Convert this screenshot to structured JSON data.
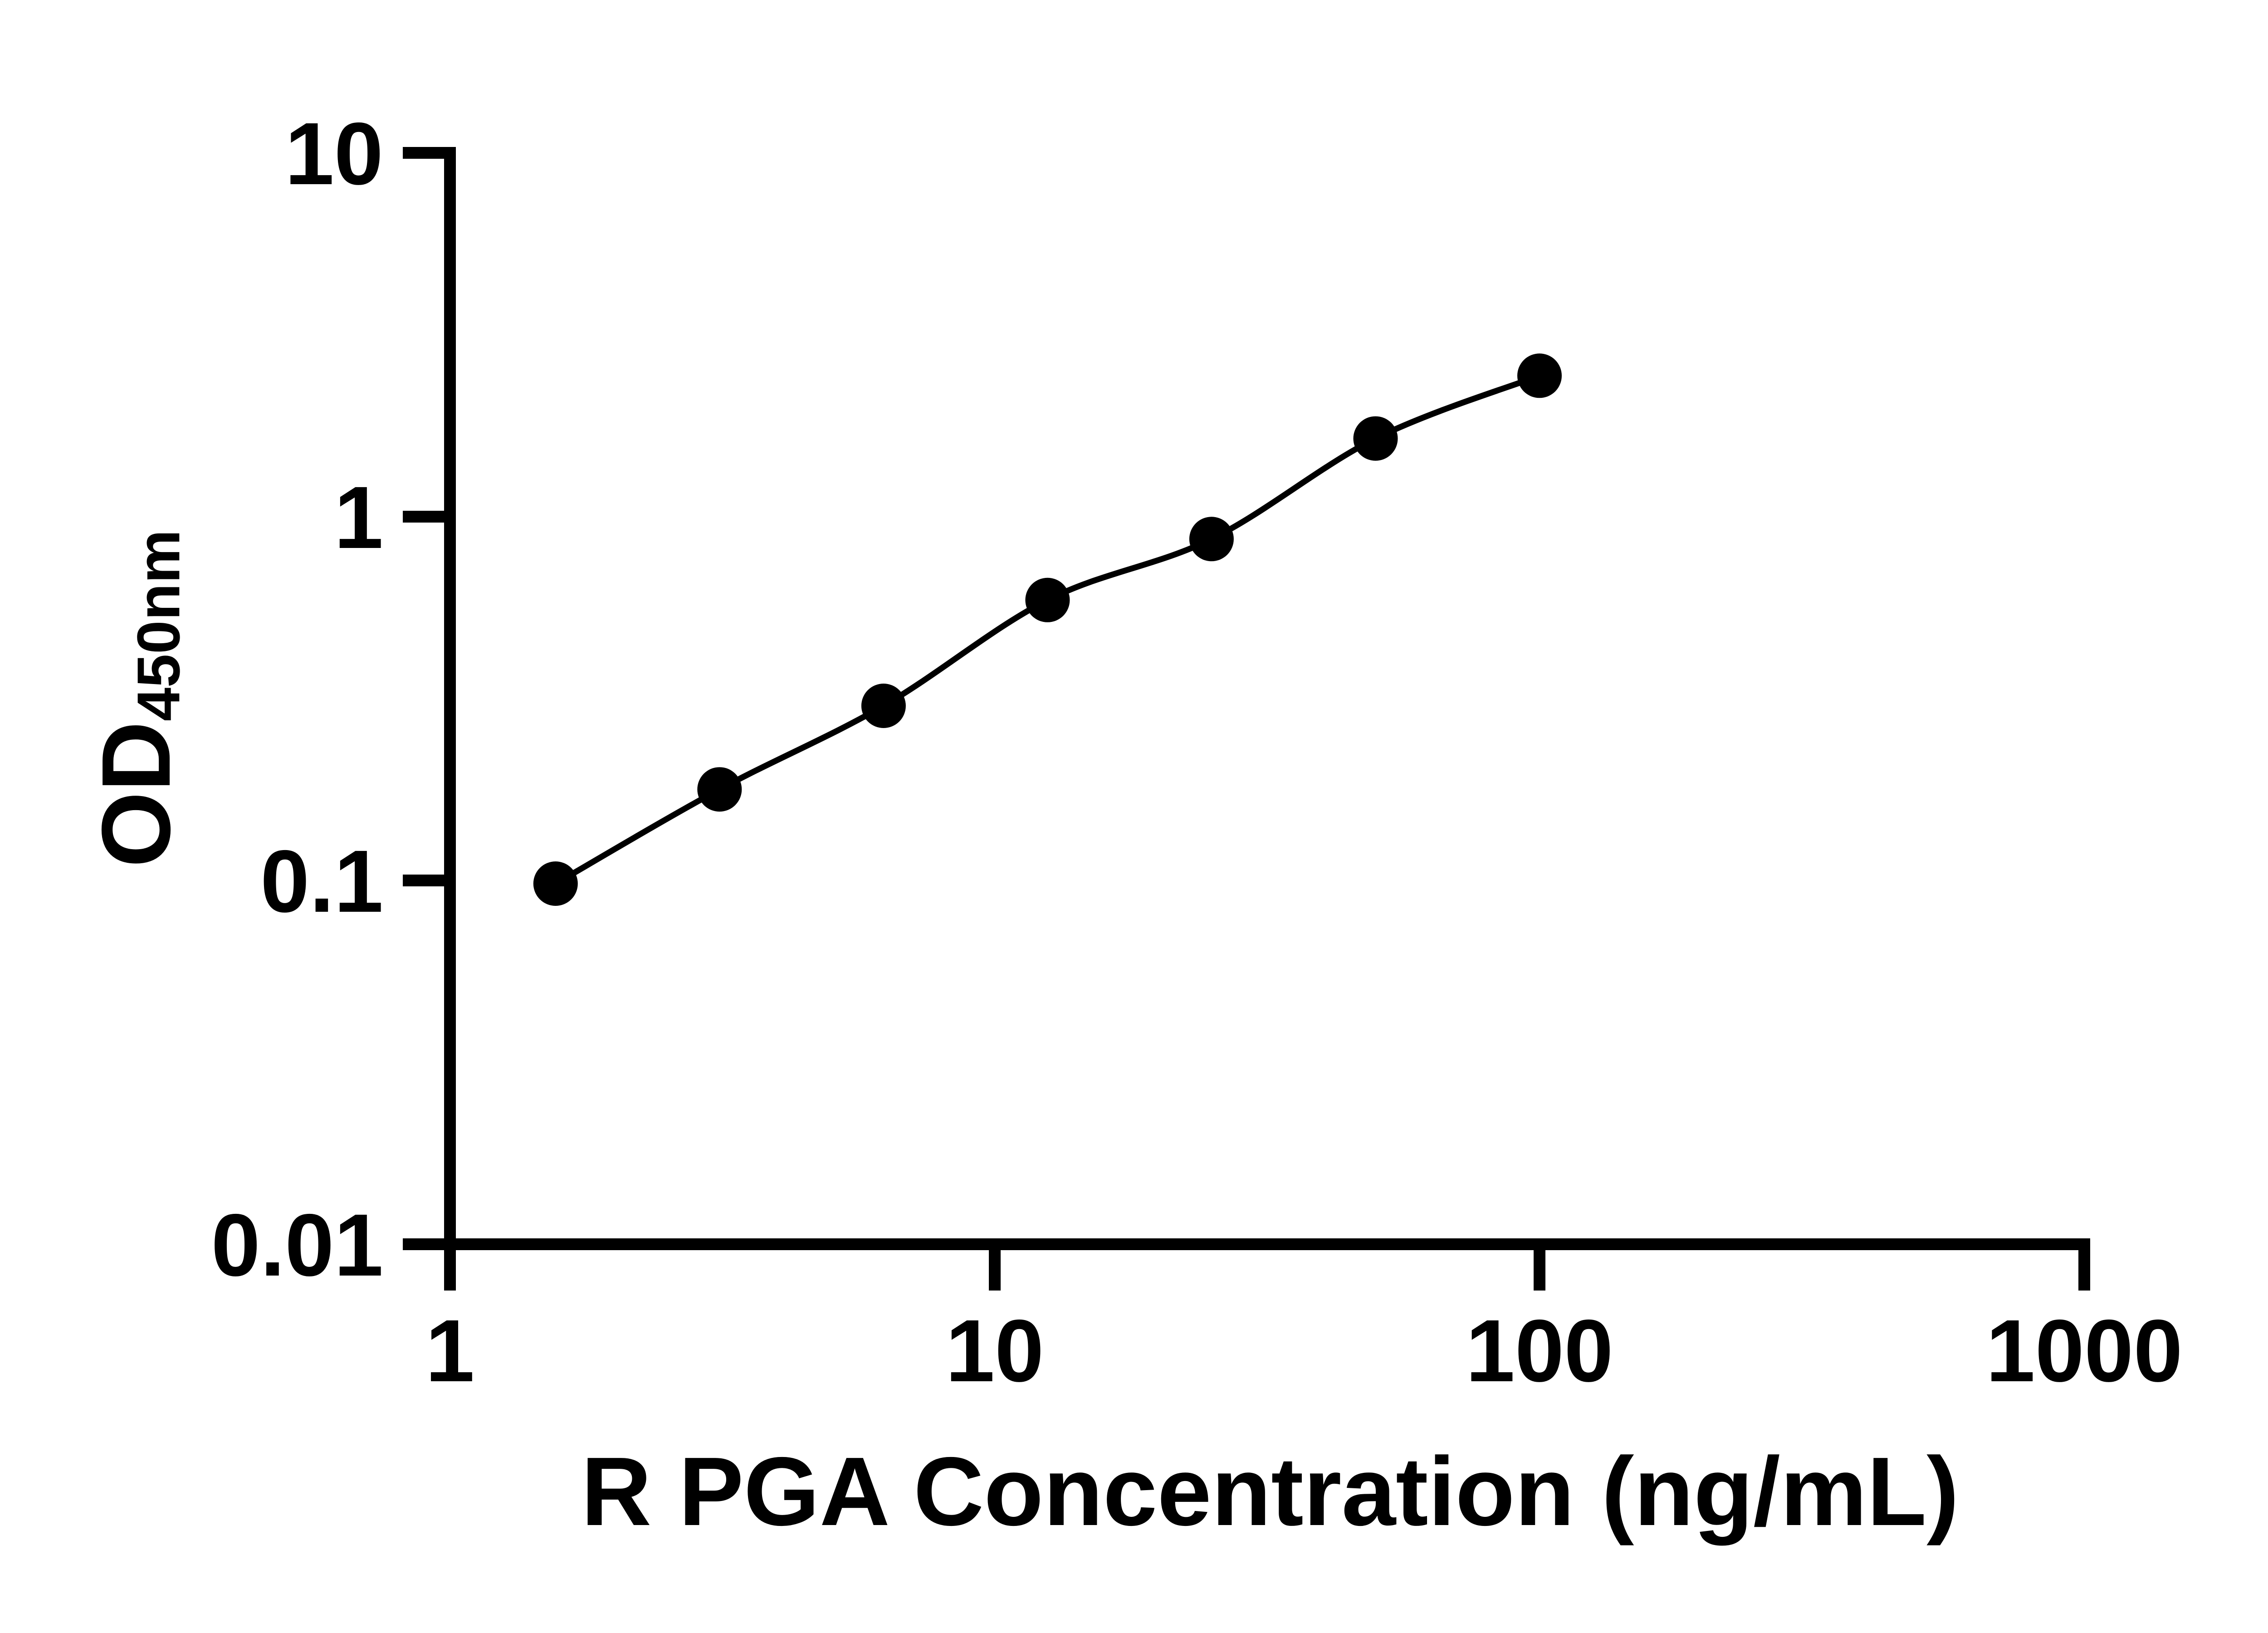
{
  "page": {
    "background_color": "#ffffff",
    "foreground_color": "#000000"
  },
  "chart_data": {
    "type": "scatter",
    "title": "",
    "xlabel": "R PGA Concentration (ng/mL)",
    "ylabel": "OD450nm",
    "ylabel_main": "OD",
    "ylabel_sub": "450nm",
    "xscale": "log",
    "yscale": "log",
    "xlim": [
      1,
      1000
    ],
    "ylim": [
      0.01,
      10
    ],
    "grid": false,
    "legend": false,
    "x": [
      1.5625,
      3.125,
      6.25,
      12.5,
      25,
      50,
      100
    ],
    "y": [
      0.098,
      0.178,
      0.302,
      0.59,
      0.868,
      1.64,
      2.44
    ],
    "x_ticks": {
      "values": [
        1,
        10,
        100,
        1000
      ],
      "labels": [
        "1",
        "10",
        "100",
        "1000"
      ]
    },
    "y_ticks": {
      "values": [
        10,
        1,
        0.1,
        0.01
      ],
      "labels": [
        "10",
        "1",
        "0.1",
        "0.01"
      ]
    },
    "marker": {
      "shape": "circle",
      "color": "#000000"
    },
    "line": {
      "color": "#000000",
      "style": "solid",
      "description": "smooth fitted standard curve through all points"
    }
  }
}
